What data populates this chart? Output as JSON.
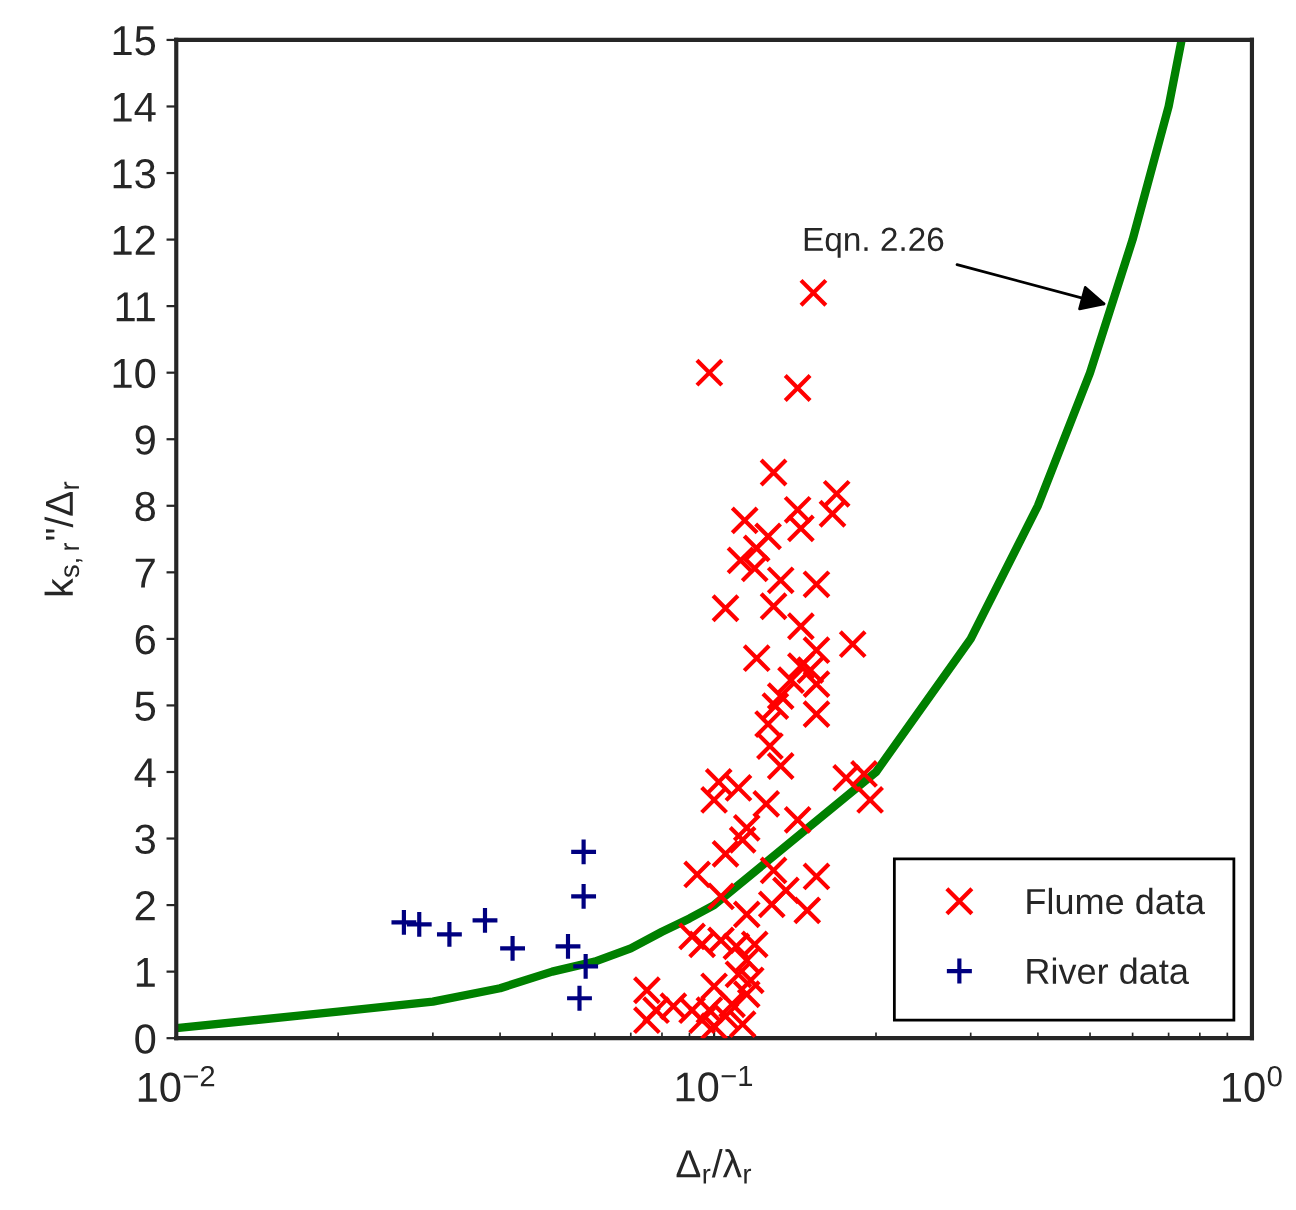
{
  "chart_data": {
    "type": "scatter",
    "xlabel": "Δ$_{r}$/λ$_{r}$",
    "ylabel": "k$_{s,r}$\"/Δ$_{r}$",
    "log": "x",
    "xlim": [
      0.01,
      1
    ],
    "xticks": [
      {
        "value": 0.01,
        "label": "10$^{−2}$"
      },
      {
        "value": 0.1,
        "label": "10$^{−1}$"
      },
      {
        "value": 1,
        "label": "10$^{0}$"
      }
    ],
    "ylim": [
      0,
      15
    ],
    "yticks": [
      0,
      1,
      2,
      3,
      4,
      5,
      6,
      7,
      8,
      9,
      10,
      11,
      12,
      13,
      14,
      15
    ],
    "grid": false,
    "legend": "bottom right",
    "annotations": [
      {
        "text": "Eqn. 2.26",
        "x": 0.55,
        "y": 11
      }
    ],
    "series": [
      {
        "name": "Flume data",
        "marker": "x",
        "color": "#ff0000",
        "x": [
          0.153,
          0.098,
          0.143,
          0.129,
          0.169,
          0.166,
          0.143,
          0.114,
          0.145,
          0.126,
          0.12,
          0.112,
          0.119,
          0.133,
          0.155,
          0.105,
          0.129,
          0.145,
          0.181,
          0.155,
          0.12,
          0.145,
          0.151,
          0.139,
          0.155,
          0.133,
          0.13,
          0.155,
          0.126,
          0.127,
          0.133,
          0.176,
          0.19,
          0.195,
          0.102,
          0.111,
          0.1,
          0.125,
          0.143,
          0.115,
          0.113,
          0.105,
          0.129,
          0.155,
          0.093,
          0.103,
          0.136,
          0.128,
          0.149,
          0.115,
          0.091,
          0.095,
          0.103,
          0.11,
          0.119,
          0.115,
          0.111,
          0.117,
          0.1,
          0.075,
          0.115,
          0.108,
          0.084,
          0.078,
          0.091,
          0.098,
          0.075,
          0.095,
          0.105,
          0.113,
          0.1
        ],
        "values": [
          11.2,
          10.0,
          9.77,
          8.5,
          8.18,
          7.88,
          7.94,
          7.78,
          7.66,
          7.54,
          7.36,
          7.18,
          7.06,
          6.88,
          6.82,
          6.46,
          6.49,
          6.19,
          5.92,
          5.83,
          5.71,
          5.59,
          5.53,
          5.38,
          5.32,
          5.14,
          4.99,
          4.87,
          4.72,
          4.39,
          4.09,
          3.91,
          3.97,
          3.58,
          3.85,
          3.76,
          3.58,
          3.52,
          3.28,
          3.16,
          2.98,
          2.77,
          2.52,
          2.43,
          2.46,
          2.13,
          2.22,
          2.01,
          1.92,
          1.86,
          1.53,
          1.41,
          1.47,
          1.38,
          1.41,
          1.17,
          0.96,
          0.87,
          0.78,
          0.72,
          0.66,
          0.51,
          0.48,
          0.42,
          0.42,
          0.42,
          0.27,
          0.27,
          0.33,
          0.21,
          0.18
        ]
      },
      {
        "name": "River data",
        "marker": "cross",
        "color": "#000080",
        "x": [
          0.0265,
          0.0283,
          0.0322,
          0.0375,
          0.0422,
          0.0535,
          0.0572,
          0.0572,
          0.0577,
          0.0562
        ],
        "values": [
          1.74,
          1.71,
          1.56,
          1.77,
          1.35,
          1.38,
          2.8,
          2.13,
          1.08,
          0.6
        ]
      },
      {
        "type": "line",
        "color": "#008000",
        "marker": "none",
        "line_style": "solid",
        "x": [
          0.01,
          0.02,
          0.03,
          0.04,
          0.05,
          0.06,
          0.07,
          0.08,
          0.09,
          0.1,
          0.2,
          0.3,
          0.4,
          0.5,
          0.6,
          0.7,
          0.74
        ],
        "values": [
          0.15,
          0.4,
          0.55,
          0.75,
          1.0,
          1.15,
          1.35,
          1.6,
          1.8,
          2.0,
          4.0,
          6.0,
          8.0,
          10.0,
          12.0,
          14.0,
          15.0
        ]
      }
    ]
  }
}
